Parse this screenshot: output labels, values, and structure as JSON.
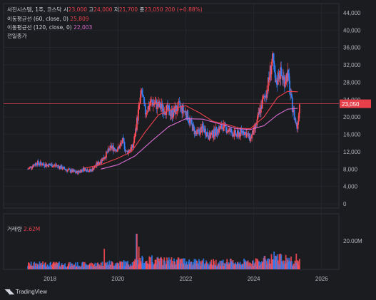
{
  "legend": {
    "symbol": "서진시스템, 1주, 코스닥",
    "o_label": "시",
    "o": "23,000",
    "h_label": "고",
    "h": "24,000",
    "l_label": "저",
    "l": "21,700",
    "c_label": "종",
    "c": "23,050",
    "change": "200 (+0.88%)",
    "ma60_label": "이동평균선 (60, close, 0)",
    "ma60": "25,809",
    "ma120_label": "이동평균선 (120, close, 0)",
    "ma120": "22,003",
    "prev_volume": "전일종가",
    "volume_label": "거래량",
    "volume": "2.62M"
  },
  "brand": {
    "name": "TradingView"
  },
  "colors": {
    "up": "#ff4d58",
    "down": "#2f7ef5",
    "ma60": "#e8404b",
    "ma120": "#d76bd0",
    "bg": "#1b1c20",
    "grid": "#2a2d35"
  },
  "chart_data": [
    {
      "type": "candlestick",
      "title": "서진시스템, 1주, 코스닥",
      "y_ticks": [
        "44,000",
        "40,000",
        "36,000",
        "32,000",
        "28,000",
        "24,000",
        "20,000",
        "16,000",
        "12,000",
        "8,000",
        "4,000",
        "0"
      ],
      "ylim": [
        0,
        44000
      ],
      "x_ticks": [
        "2018",
        "2020",
        "2022",
        "2024",
        "2026"
      ],
      "last_price": 23050,
      "last_price_label": "23,050",
      "series": [
        {
          "name": "이동평균선 (60, close, 0)",
          "points": [
            [
              2019.0,
              8200
            ],
            [
              2019.5,
              9000
            ],
            [
              2020.0,
              10500
            ],
            [
              2020.4,
              12000
            ],
            [
              2020.8,
              16500
            ],
            [
              2021.2,
              20500
            ],
            [
              2021.6,
              21800
            ],
            [
              2022.0,
              22600
            ],
            [
              2022.4,
              21000
            ],
            [
              2022.8,
              19000
            ],
            [
              2023.2,
              18300
            ],
            [
              2023.6,
              17400
            ],
            [
              2023.9,
              17300
            ],
            [
              2024.3,
              20000
            ],
            [
              2024.7,
              24500
            ],
            [
              2025.0,
              25900
            ],
            [
              2025.3,
              25809
            ]
          ]
        },
        {
          "name": "이동평균선 (120, close, 0)",
          "points": [
            [
              2019.5,
              8000
            ],
            [
              2020.0,
              9000
            ],
            [
              2020.5,
              11000
            ],
            [
              2021.0,
              14500
            ],
            [
              2021.5,
              17800
            ],
            [
              2022.0,
              19600
            ],
            [
              2022.5,
              19500
            ],
            [
              2023.0,
              18400
            ],
            [
              2023.5,
              17300
            ],
            [
              2023.9,
              17100
            ],
            [
              2024.3,
              18000
            ],
            [
              2024.7,
              20500
            ],
            [
              2025.0,
              21800
            ],
            [
              2025.3,
              22003
            ]
          ]
        }
      ],
      "price_path": [
        [
          2017.35,
          8000
        ],
        [
          2017.6,
          9400
        ],
        [
          2017.9,
          9000
        ],
        [
          2018.2,
          8800
        ],
        [
          2018.5,
          7800
        ],
        [
          2018.8,
          7200
        ],
        [
          2019.0,
          8100
        ],
        [
          2019.2,
          7600
        ],
        [
          2019.4,
          9200
        ],
        [
          2019.6,
          10800
        ],
        [
          2019.8,
          13000
        ],
        [
          2020.0,
          12600
        ],
        [
          2020.15,
          14500
        ],
        [
          2020.25,
          11800
        ],
        [
          2020.45,
          13200
        ],
        [
          2020.6,
          21000
        ],
        [
          2020.7,
          26000
        ],
        [
          2020.8,
          21000
        ],
        [
          2021.0,
          23500
        ],
        [
          2021.2,
          22500
        ],
        [
          2021.4,
          21800
        ],
        [
          2021.6,
          20800
        ],
        [
          2021.8,
          22400
        ],
        [
          2022.0,
          21000
        ],
        [
          2022.3,
          16000
        ],
        [
          2022.5,
          17500
        ],
        [
          2022.7,
          15500
        ],
        [
          2022.9,
          16800
        ],
        [
          2023.1,
          17800
        ],
        [
          2023.3,
          16700
        ],
        [
          2023.5,
          15800
        ],
        [
          2023.7,
          16800
        ],
        [
          2023.9,
          15000
        ],
        [
          2024.05,
          17500
        ],
        [
          2024.2,
          22000
        ],
        [
          2024.4,
          26500
        ],
        [
          2024.55,
          33500
        ],
        [
          2024.65,
          27000
        ],
        [
          2024.75,
          30500
        ],
        [
          2024.9,
          28500
        ],
        [
          2025.0,
          30000
        ],
        [
          2025.1,
          24000
        ],
        [
          2025.2,
          20000
        ],
        [
          2025.28,
          17500
        ],
        [
          2025.35,
          23050
        ]
      ],
      "volume_label": "거래량",
      "volume_value": "2.62M",
      "volume_ticks": [
        "20.00M"
      ],
      "volume_spikes": [
        [
          2020.55,
          33000000
        ],
        [
          2020.62,
          21000000
        ],
        [
          2019.6,
          19000000
        ],
        [
          2024.6,
          16500000
        ],
        [
          2024.7,
          14000000
        ],
        [
          2025.25,
          14500000
        ],
        [
          2021.0,
          13000000
        ]
      ]
    }
  ]
}
